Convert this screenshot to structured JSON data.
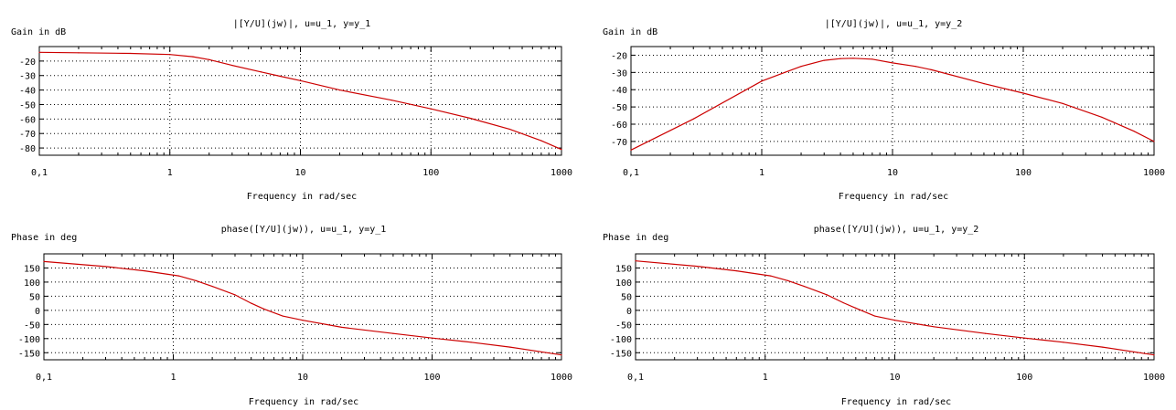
{
  "chart_data": [
    {
      "type": "line",
      "title": "|[Y/U](jw)|, u=u_1, y=y_1",
      "ylabel": "Gain in dB",
      "xlabel": "Frequency in rad/sec",
      "xscale": "log",
      "xlim": [
        0.1,
        1000
      ],
      "ylim": [
        -85,
        -10
      ],
      "xticks": [
        0.1,
        1,
        10,
        100,
        1000
      ],
      "xtick_labels": [
        "0,1",
        "1",
        "10",
        "100",
        "1000"
      ],
      "yticks": [
        -20,
        -30,
        -40,
        -50,
        -60,
        -70,
        -80
      ],
      "ytick_labels": [
        "-20",
        "-30",
        "-40",
        "-50",
        "-60",
        "-70",
        "-80"
      ],
      "grid": true,
      "line_color": "#cc0000",
      "series": [
        {
          "x": [
            0.1,
            0.2,
            0.5,
            1,
            1.5,
            2,
            3,
            5,
            7,
            10,
            20,
            50,
            100,
            200,
            400,
            700,
            1000
          ],
          "y": [
            -14,
            -14.3,
            -14.7,
            -15.5,
            -17,
            -19,
            -23,
            -27.5,
            -30.5,
            -33.5,
            -40,
            -47,
            -53,
            -59.5,
            -67,
            -75,
            -81
          ]
        }
      ]
    },
    {
      "type": "line",
      "title": "|[Y/U](jw)|, u=u_1, y=y_2",
      "ylabel": "Gain in dB",
      "xlabel": "Frequency in rad/sec",
      "xscale": "log",
      "xlim": [
        0.1,
        1000
      ],
      "ylim": [
        -78,
        -15
      ],
      "xticks": [
        0.1,
        1,
        10,
        100,
        1000
      ],
      "xtick_labels": [
        "0,1",
        "1",
        "10",
        "100",
        "1000"
      ],
      "yticks": [
        -20,
        -30,
        -40,
        -50,
        -60,
        -70
      ],
      "ytick_labels": [
        "-20",
        "-30",
        "-40",
        "-50",
        "-60",
        "-70"
      ],
      "grid": true,
      "line_color": "#cc0000",
      "series": [
        {
          "x": [
            0.1,
            0.3,
            1,
            1.5,
            2,
            3,
            4,
            5,
            7,
            10,
            15,
            20,
            50,
            100,
            200,
            400,
            700,
            1000
          ],
          "y": [
            -75,
            -57,
            -35,
            -30,
            -26.5,
            -23,
            -22,
            -21.8,
            -22.3,
            -24.5,
            -26.5,
            -28.5,
            -36.5,
            -42,
            -48,
            -56,
            -64,
            -70
          ]
        }
      ]
    },
    {
      "type": "line",
      "title": "phase([Y/U](jw)), u=u_1, y=y_1",
      "ylabel": "Phase in deg",
      "xlabel": "Frequency in rad/sec",
      "xscale": "log",
      "xlim": [
        0.1,
        1000
      ],
      "ylim": [
        -175,
        200
      ],
      "xticks": [
        0.1,
        1,
        10,
        100,
        1000
      ],
      "xtick_labels": [
        "0,1",
        "1",
        "10",
        "100",
        "1000"
      ],
      "yticks": [
        150,
        100,
        50,
        0,
        -50,
        -100,
        -150
      ],
      "ytick_labels": [
        "150",
        "100",
        "50",
        "0",
        "-50",
        "-100",
        "-150"
      ],
      "grid": true,
      "line_color": "#cc0000",
      "series": [
        {
          "x": [
            0.1,
            0.3,
            0.6,
            1.1,
            1.5,
            2,
            3,
            4,
            5,
            7,
            10,
            20,
            50,
            100,
            200,
            400,
            1000
          ],
          "y": [
            173,
            155,
            140,
            122,
            105,
            85,
            55,
            25,
            5,
            -20,
            -35,
            -60,
            -82,
            -98,
            -113,
            -130,
            -158
          ]
        }
      ]
    },
    {
      "type": "line",
      "title": "phase([Y/U](jw)), u=u_1, y=y_2",
      "ylabel": "Phase in deg",
      "xlabel": "Frequency in rad/sec",
      "xscale": "log",
      "xlim": [
        0.1,
        1000
      ],
      "ylim": [
        -175,
        200
      ],
      "xticks": [
        0.1,
        1,
        10,
        100,
        1000
      ],
      "xtick_labels": [
        "0,1",
        "1",
        "10",
        "100",
        "1000"
      ],
      "yticks": [
        150,
        100,
        50,
        0,
        -50,
        -100,
        -150
      ],
      "ytick_labels": [
        "150",
        "100",
        "50",
        "0",
        "-50",
        "-100",
        "-150"
      ],
      "grid": true,
      "line_color": "#cc0000",
      "series": [
        {
          "x": [
            0.1,
            0.3,
            0.6,
            1.1,
            1.5,
            2,
            3,
            4,
            5,
            7,
            10,
            20,
            50,
            100,
            200,
            400,
            1000
          ],
          "y": [
            175,
            156,
            140,
            122,
            105,
            85,
            55,
            27,
            8,
            -20,
            -35,
            -58,
            -82,
            -98,
            -113,
            -130,
            -158
          ]
        }
      ]
    }
  ]
}
